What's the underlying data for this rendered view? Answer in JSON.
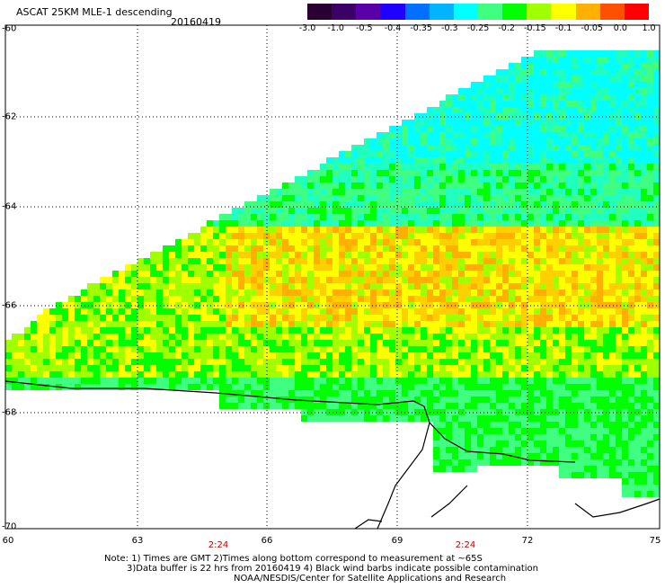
{
  "header": {
    "title": "ASCAT 25KM MLE-1 descending",
    "date": "20160419"
  },
  "colorbar": {
    "tick_labels": [
      "-3.0",
      "-1.0",
      "-0.5",
      "-0.4",
      "-0.35",
      "-0.3",
      "-0.25",
      "-0.2",
      "-0.15",
      "-0.1",
      "-0.05",
      "0.0",
      "1.0"
    ],
    "colors": [
      "#2a0033",
      "#3c0066",
      "#5a00a8",
      "#2000ff",
      "#0070ff",
      "#00b4ff",
      "#00ffff",
      "#40ff80",
      "#00ff00",
      "#a0ff00",
      "#ffff00",
      "#ffb000",
      "#ff5000",
      "#ff0000"
    ]
  },
  "axes": {
    "lat_labels": [
      "-60",
      "-62",
      "-64",
      "-66",
      "-68",
      "-70"
    ],
    "lon_labels": [
      "60",
      "63",
      "66",
      "69",
      "72",
      "75"
    ],
    "time_labels": [
      "2:24",
      "2:24"
    ]
  },
  "notes": {
    "line1": "Note: 1) Times are GMT 2)Times along bottom correspond to measurement at ~65S",
    "line2": "3)Data buffer is 22 hrs from 20160419 4) Black wind barbs indicate possible contamination",
    "line3": "NOAA/NESDIS/Center for Satellite Applications and Research"
  }
}
